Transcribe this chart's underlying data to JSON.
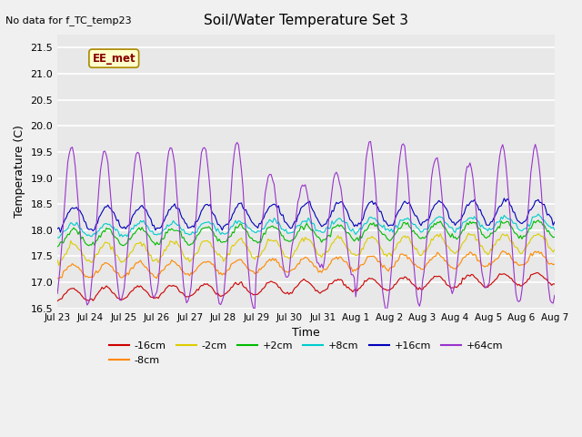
{
  "title": "Soil/Water Temperature Set 3",
  "no_data_label": "No data for f_TC_temp23",
  "station_label": "EE_met",
  "xlabel": "Time",
  "ylabel": "Temperature (C)",
  "ylim": [
    16.5,
    21.75
  ],
  "tick_dates": [
    "Jul 23",
    "Jul 24",
    "Jul 25",
    "Jul 26",
    "Jul 27",
    "Jul 28",
    "Jul 29",
    "Jul 30",
    "Jul 31",
    "Aug 1",
    "Aug 2",
    "Aug 3",
    "Aug 4",
    "Aug 5",
    "Aug 6",
    "Aug 7"
  ],
  "yticks": [
    16.5,
    17.0,
    17.5,
    18.0,
    18.5,
    19.0,
    19.5,
    20.0,
    20.5,
    21.0,
    21.5
  ],
  "n_points": 336,
  "days": 15,
  "colors": {
    "-16cm": "#cc0000",
    "-8cm": "#ff8800",
    "-2cm": "#ddcc00",
    "+2cm": "#00bb00",
    "+8cm": "#00cccc",
    "+16cm": "#0000bb",
    "+64cm": "#9933cc"
  },
  "fig_bg": "#f0f0f0",
  "ax_bg": "#e8e8e8",
  "grid_color": "white"
}
